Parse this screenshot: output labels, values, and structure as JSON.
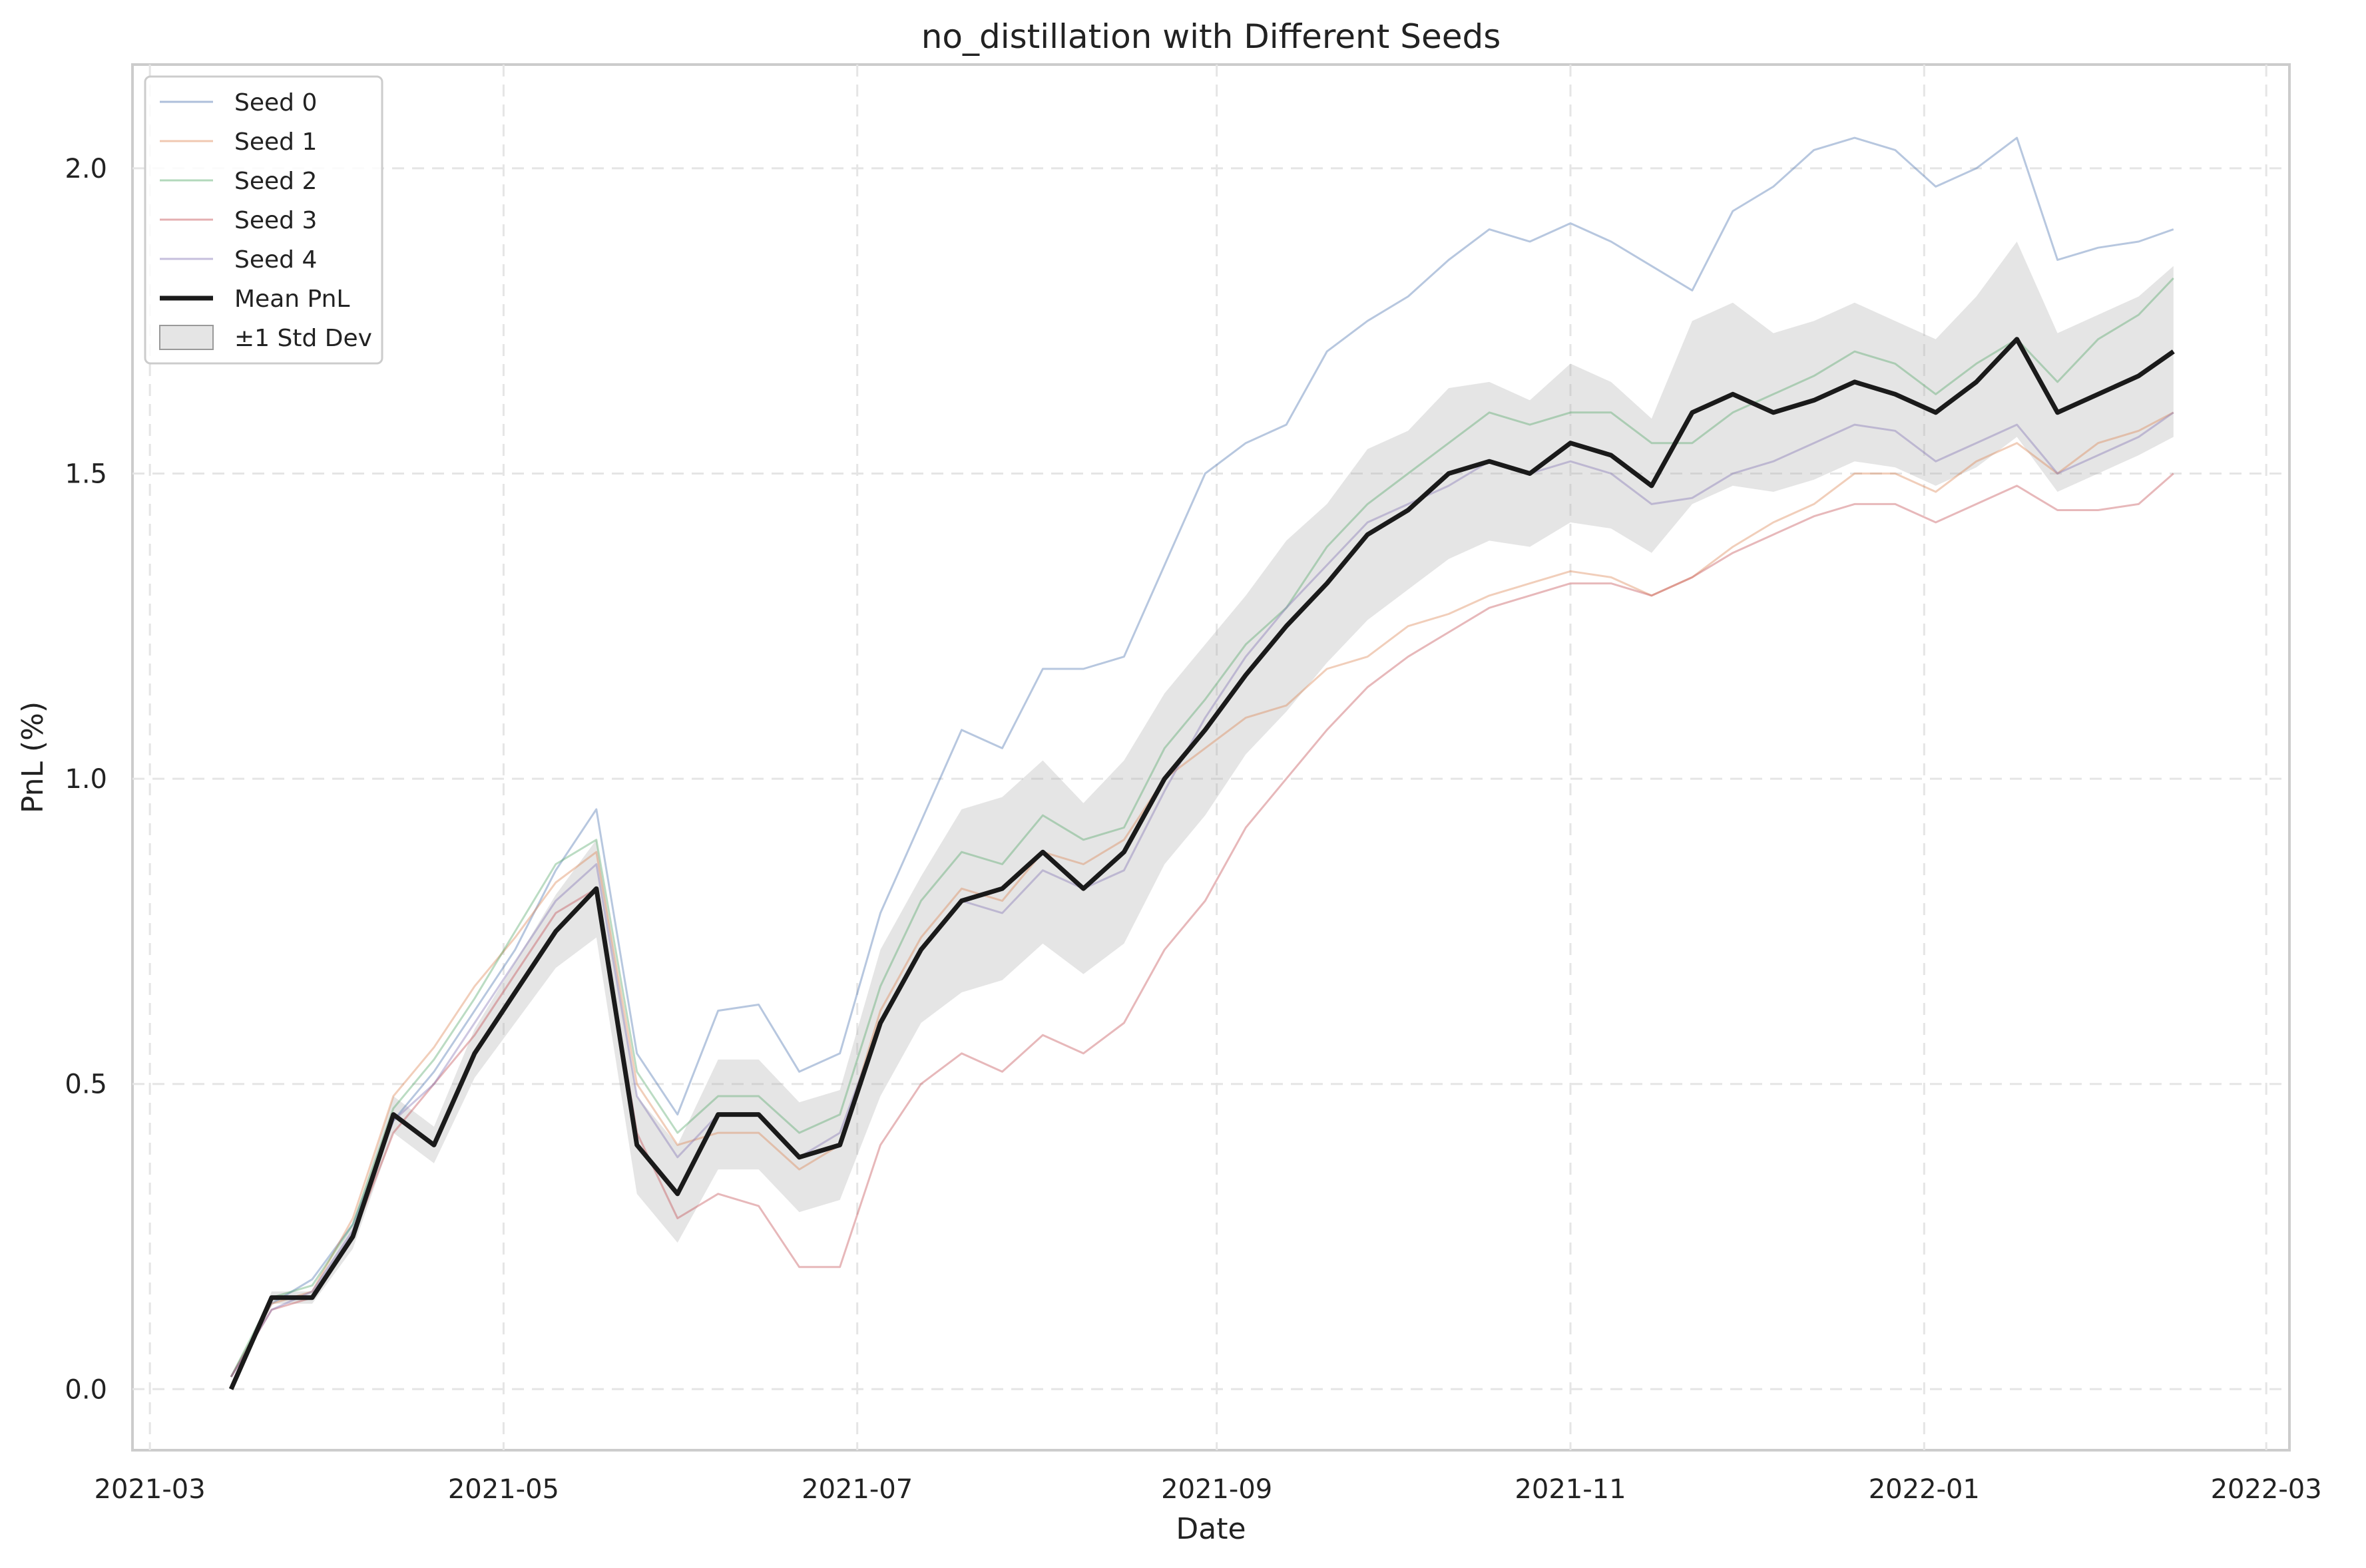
{
  "chart_data": {
    "type": "line",
    "title": "no_distillation with Different Seeds",
    "xlabel": "Date",
    "ylabel": "PnL (%)",
    "xlim": [
      "2021-02-26",
      "2022-03-05"
    ],
    "ylim": [
      -0.1,
      2.17
    ],
    "x_ticks": [
      "2021-03",
      "2021-05",
      "2021-07",
      "2021-09",
      "2021-11",
      "2022-01",
      "2022-03"
    ],
    "y_ticks": [
      "0.0",
      "0.5",
      "1.0",
      "1.5",
      "2.0"
    ],
    "grid": true,
    "legend_position": "top-left",
    "band_label": "±1 Std Dev",
    "series": [
      {
        "name": "Seed 0",
        "color": "#4c72b0",
        "x": [
          "2021-03-15",
          "2021-03-22",
          "2021-03-29",
          "2021-04-05",
          "2021-04-12",
          "2021-04-19",
          "2021-04-26",
          "2021-05-03",
          "2021-05-10",
          "2021-05-17",
          "2021-05-24",
          "2021-05-31",
          "2021-06-07",
          "2021-06-14",
          "2021-06-21",
          "2021-06-28",
          "2021-07-05",
          "2021-07-12",
          "2021-07-19",
          "2021-07-26",
          "2021-08-02",
          "2021-08-09",
          "2021-08-16",
          "2021-08-23",
          "2021-08-30",
          "2021-09-06",
          "2021-09-13",
          "2021-09-20",
          "2021-09-27",
          "2021-10-04",
          "2021-10-11",
          "2021-10-18",
          "2021-10-25",
          "2021-11-01",
          "2021-11-08",
          "2021-11-15",
          "2021-11-22",
          "2021-11-29",
          "2021-12-06",
          "2021-12-13",
          "2021-12-20",
          "2021-12-27",
          "2022-01-03",
          "2022-01-10",
          "2022-01-17",
          "2022-01-24",
          "2022-01-31",
          "2022-02-07",
          "2022-02-13"
        ],
        "y": [
          0.02,
          0.14,
          0.18,
          0.27,
          0.44,
          0.52,
          0.62,
          0.72,
          0.85,
          0.95,
          0.55,
          0.45,
          0.62,
          0.63,
          0.52,
          0.55,
          0.78,
          0.93,
          1.08,
          1.05,
          1.18,
          1.18,
          1.2,
          1.35,
          1.5,
          1.55,
          1.58,
          1.7,
          1.75,
          1.79,
          1.85,
          1.9,
          1.88,
          1.91,
          1.88,
          1.84,
          1.8,
          1.93,
          1.97,
          2.03,
          2.05,
          2.03,
          1.97,
          2.0,
          2.05,
          1.85,
          1.87,
          1.88,
          1.9
        ]
      },
      {
        "name": "Seed 1",
        "color": "#dd8452",
        "x": [
          "2021-03-15",
          "2021-03-22",
          "2021-03-29",
          "2021-04-05",
          "2021-04-12",
          "2021-04-19",
          "2021-04-26",
          "2021-05-03",
          "2021-05-10",
          "2021-05-17",
          "2021-05-24",
          "2021-05-31",
          "2021-06-07",
          "2021-06-14",
          "2021-06-21",
          "2021-06-28",
          "2021-07-05",
          "2021-07-12",
          "2021-07-19",
          "2021-07-26",
          "2021-08-02",
          "2021-08-09",
          "2021-08-16",
          "2021-08-23",
          "2021-08-30",
          "2021-09-06",
          "2021-09-13",
          "2021-09-20",
          "2021-09-27",
          "2021-10-04",
          "2021-10-11",
          "2021-10-18",
          "2021-10-25",
          "2021-11-01",
          "2021-11-08",
          "2021-11-15",
          "2021-11-22",
          "2021-11-29",
          "2021-12-06",
          "2021-12-13",
          "2021-12-20",
          "2021-12-27",
          "2022-01-03",
          "2022-01-10",
          "2022-01-17",
          "2022-01-24",
          "2022-01-31",
          "2022-02-07",
          "2022-02-13"
        ],
        "y": [
          0.02,
          0.14,
          0.16,
          0.28,
          0.48,
          0.56,
          0.66,
          0.74,
          0.83,
          0.88,
          0.5,
          0.4,
          0.42,
          0.42,
          0.36,
          0.4,
          0.62,
          0.74,
          0.82,
          0.8,
          0.88,
          0.86,
          0.9,
          1.0,
          1.05,
          1.1,
          1.12,
          1.18,
          1.2,
          1.25,
          1.27,
          1.3,
          1.32,
          1.34,
          1.33,
          1.3,
          1.33,
          1.38,
          1.42,
          1.45,
          1.5,
          1.5,
          1.47,
          1.52,
          1.55,
          1.5,
          1.55,
          1.57,
          1.6
        ]
      },
      {
        "name": "Seed 2",
        "color": "#55a868",
        "x": [
          "2021-03-15",
          "2021-03-22",
          "2021-03-29",
          "2021-04-05",
          "2021-04-12",
          "2021-04-19",
          "2021-04-26",
          "2021-05-03",
          "2021-05-10",
          "2021-05-17",
          "2021-05-24",
          "2021-05-31",
          "2021-06-07",
          "2021-06-14",
          "2021-06-21",
          "2021-06-28",
          "2021-07-05",
          "2021-07-12",
          "2021-07-19",
          "2021-07-26",
          "2021-08-02",
          "2021-08-09",
          "2021-08-16",
          "2021-08-23",
          "2021-08-30",
          "2021-09-06",
          "2021-09-13",
          "2021-09-20",
          "2021-09-27",
          "2021-10-04",
          "2021-10-11",
          "2021-10-18",
          "2021-10-25",
          "2021-11-01",
          "2021-11-08",
          "2021-11-15",
          "2021-11-22",
          "2021-11-29",
          "2021-12-06",
          "2021-12-13",
          "2021-12-20",
          "2021-12-27",
          "2022-01-03",
          "2022-01-10",
          "2022-01-17",
          "2022-01-24",
          "2022-01-31",
          "2022-02-07",
          "2022-02-13"
        ],
        "y": [
          0.02,
          0.15,
          0.17,
          0.27,
          0.46,
          0.54,
          0.64,
          0.75,
          0.86,
          0.9,
          0.52,
          0.42,
          0.48,
          0.48,
          0.42,
          0.45,
          0.66,
          0.8,
          0.88,
          0.86,
          0.94,
          0.9,
          0.92,
          1.05,
          1.13,
          1.22,
          1.28,
          1.38,
          1.45,
          1.5,
          1.55,
          1.6,
          1.58,
          1.6,
          1.6,
          1.55,
          1.55,
          1.6,
          1.63,
          1.66,
          1.7,
          1.68,
          1.63,
          1.68,
          1.72,
          1.65,
          1.72,
          1.76,
          1.82
        ]
      },
      {
        "name": "Seed 3",
        "color": "#c44e52",
        "x": [
          "2021-03-15",
          "2021-03-22",
          "2021-03-29",
          "2021-04-05",
          "2021-04-12",
          "2021-04-19",
          "2021-04-26",
          "2021-05-03",
          "2021-05-10",
          "2021-05-17",
          "2021-05-24",
          "2021-05-31",
          "2021-06-07",
          "2021-06-14",
          "2021-06-21",
          "2021-06-28",
          "2021-07-05",
          "2021-07-12",
          "2021-07-19",
          "2021-07-26",
          "2021-08-02",
          "2021-08-09",
          "2021-08-16",
          "2021-08-23",
          "2021-08-30",
          "2021-09-06",
          "2021-09-13",
          "2021-09-20",
          "2021-09-27",
          "2021-10-04",
          "2021-10-11",
          "2021-10-18",
          "2021-10-25",
          "2021-11-01",
          "2021-11-08",
          "2021-11-15",
          "2021-11-22",
          "2021-11-29",
          "2021-12-06",
          "2021-12-13",
          "2021-12-20",
          "2021-12-27",
          "2022-01-03",
          "2022-01-10",
          "2022-01-17",
          "2022-01-24",
          "2022-01-31",
          "2022-02-07",
          "2022-02-13"
        ],
        "y": [
          0.02,
          0.13,
          0.15,
          0.25,
          0.42,
          0.5,
          0.58,
          0.68,
          0.78,
          0.82,
          0.42,
          0.28,
          0.32,
          0.3,
          0.2,
          0.2,
          0.4,
          0.5,
          0.55,
          0.52,
          0.58,
          0.55,
          0.6,
          0.72,
          0.8,
          0.92,
          1.0,
          1.08,
          1.15,
          1.2,
          1.24,
          1.28,
          1.3,
          1.32,
          1.32,
          1.3,
          1.33,
          1.37,
          1.4,
          1.43,
          1.45,
          1.45,
          1.42,
          1.45,
          1.48,
          1.44,
          1.44,
          1.45,
          1.5
        ]
      },
      {
        "name": "Seed 4",
        "color": "#8172b3",
        "x": [
          "2021-03-15",
          "2021-03-22",
          "2021-03-29",
          "2021-04-05",
          "2021-04-12",
          "2021-04-19",
          "2021-04-26",
          "2021-05-03",
          "2021-05-10",
          "2021-05-17",
          "2021-05-24",
          "2021-05-31",
          "2021-06-07",
          "2021-06-14",
          "2021-06-21",
          "2021-06-28",
          "2021-07-05",
          "2021-07-12",
          "2021-07-19",
          "2021-07-26",
          "2021-08-02",
          "2021-08-09",
          "2021-08-16",
          "2021-08-23",
          "2021-08-30",
          "2021-09-06",
          "2021-09-13",
          "2021-09-20",
          "2021-09-27",
          "2021-10-04",
          "2021-10-11",
          "2021-10-18",
          "2021-10-25",
          "2021-11-01",
          "2021-11-08",
          "2021-11-15",
          "2021-11-22",
          "2021-11-29",
          "2021-12-06",
          "2021-12-13",
          "2021-12-20",
          "2021-12-27",
          "2022-01-03",
          "2022-01-10",
          "2022-01-17",
          "2022-01-24",
          "2022-01-31",
          "2022-02-07",
          "2022-02-13"
        ],
        "y": [
          0.02,
          0.13,
          0.16,
          0.26,
          0.44,
          0.5,
          0.6,
          0.7,
          0.8,
          0.86,
          0.48,
          0.38,
          0.45,
          0.45,
          0.38,
          0.42,
          0.6,
          0.72,
          0.8,
          0.78,
          0.85,
          0.82,
          0.85,
          0.98,
          1.1,
          1.2,
          1.28,
          1.35,
          1.42,
          1.45,
          1.48,
          1.52,
          1.5,
          1.52,
          1.5,
          1.45,
          1.46,
          1.5,
          1.52,
          1.55,
          1.58,
          1.57,
          1.52,
          1.55,
          1.58,
          1.5,
          1.53,
          1.56,
          1.6
        ]
      },
      {
        "name": "Mean PnL",
        "color": "#1a1a1a",
        "x": [
          "2021-03-15",
          "2021-03-22",
          "2021-03-29",
          "2021-04-05",
          "2021-04-12",
          "2021-04-19",
          "2021-04-26",
          "2021-05-03",
          "2021-05-10",
          "2021-05-17",
          "2021-05-24",
          "2021-05-31",
          "2021-06-07",
          "2021-06-14",
          "2021-06-21",
          "2021-06-28",
          "2021-07-05",
          "2021-07-12",
          "2021-07-19",
          "2021-07-26",
          "2021-08-02",
          "2021-08-09",
          "2021-08-16",
          "2021-08-23",
          "2021-08-30",
          "2021-09-06",
          "2021-09-13",
          "2021-09-20",
          "2021-09-27",
          "2021-10-04",
          "2021-10-11",
          "2021-10-18",
          "2021-10-25",
          "2021-11-01",
          "2021-11-08",
          "2021-11-15",
          "2021-11-22",
          "2021-11-29",
          "2021-12-06",
          "2021-12-13",
          "2021-12-20",
          "2021-12-27",
          "2022-01-03",
          "2022-01-10",
          "2022-01-17",
          "2022-01-24",
          "2022-01-31",
          "2022-02-07",
          "2022-02-13"
        ],
        "y": [
          0.0,
          0.15,
          0.15,
          0.25,
          0.45,
          0.4,
          0.55,
          0.65,
          0.75,
          0.82,
          0.4,
          0.32,
          0.45,
          0.45,
          0.38,
          0.4,
          0.6,
          0.72,
          0.8,
          0.82,
          0.88,
          0.82,
          0.88,
          1.0,
          1.08,
          1.17,
          1.25,
          1.32,
          1.4,
          1.44,
          1.5,
          1.52,
          1.5,
          1.55,
          1.53,
          1.48,
          1.6,
          1.63,
          1.6,
          1.62,
          1.65,
          1.63,
          1.6,
          1.65,
          1.72,
          1.6,
          1.63,
          1.66,
          1.7
        ]
      }
    ],
    "std_band": {
      "x": [
        "2021-03-15",
        "2021-03-22",
        "2021-03-29",
        "2021-04-05",
        "2021-04-12",
        "2021-04-19",
        "2021-04-26",
        "2021-05-03",
        "2021-05-10",
        "2021-05-17",
        "2021-05-24",
        "2021-05-31",
        "2021-06-07",
        "2021-06-14",
        "2021-06-21",
        "2021-06-28",
        "2021-07-05",
        "2021-07-12",
        "2021-07-19",
        "2021-07-26",
        "2021-08-02",
        "2021-08-09",
        "2021-08-16",
        "2021-08-23",
        "2021-08-30",
        "2021-09-06",
        "2021-09-13",
        "2021-09-20",
        "2021-09-27",
        "2021-10-04",
        "2021-10-11",
        "2021-10-18",
        "2021-10-25",
        "2021-11-01",
        "2021-11-08",
        "2021-11-15",
        "2021-11-22",
        "2021-11-29",
        "2021-12-06",
        "2021-12-13",
        "2021-12-20",
        "2021-12-27",
        "2022-01-03",
        "2022-01-10",
        "2022-01-17",
        "2022-01-24",
        "2022-01-31",
        "2022-02-07",
        "2022-02-13"
      ],
      "lower": [
        0.0,
        0.14,
        0.14,
        0.23,
        0.42,
        0.37,
        0.51,
        0.6,
        0.69,
        0.74,
        0.32,
        0.24,
        0.36,
        0.36,
        0.29,
        0.31,
        0.48,
        0.6,
        0.65,
        0.67,
        0.73,
        0.68,
        0.73,
        0.86,
        0.94,
        1.04,
        1.11,
        1.19,
        1.26,
        1.31,
        1.36,
        1.39,
        1.38,
        1.42,
        1.41,
        1.37,
        1.45,
        1.48,
        1.47,
        1.49,
        1.52,
        1.51,
        1.48,
        1.51,
        1.56,
        1.47,
        1.5,
        1.53,
        1.56
      ],
      "upper": [
        0.0,
        0.16,
        0.16,
        0.27,
        0.48,
        0.43,
        0.59,
        0.7,
        0.81,
        0.9,
        0.48,
        0.4,
        0.54,
        0.54,
        0.47,
        0.49,
        0.72,
        0.84,
        0.95,
        0.97,
        1.03,
        0.96,
        1.03,
        1.14,
        1.22,
        1.3,
        1.39,
        1.45,
        1.54,
        1.57,
        1.64,
        1.65,
        1.62,
        1.68,
        1.65,
        1.59,
        1.75,
        1.78,
        1.73,
        1.75,
        1.78,
        1.75,
        1.72,
        1.79,
        1.88,
        1.73,
        1.76,
        1.79,
        1.84
      ]
    }
  }
}
